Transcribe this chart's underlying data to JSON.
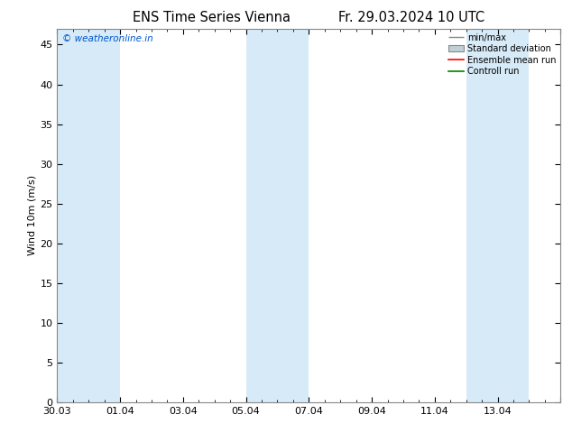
{
  "title_left": "ENS Time Series Vienna",
  "title_right": "Fr. 29.03.2024 10 UTC",
  "ylabel": "Wind 10m (m/s)",
  "watermark": "© weatheronline.in",
  "watermark_color": "#0055cc",
  "ylim": [
    0,
    47
  ],
  "yticks": [
    0,
    5,
    10,
    15,
    20,
    25,
    30,
    35,
    40,
    45
  ],
  "background_color": "#ffffff",
  "plot_bg_color": "#ffffff",
  "shaded_band_color": "#d6eaf8",
  "num_days": 16,
  "x_tick_labels_map": {
    "0": "30.03",
    "2": "01.04",
    "4": "03.04",
    "6": "05.04",
    "8": "07.04",
    "10": "09.04",
    "12": "11.04",
    "14": "13.04"
  },
  "shaded_ranges": [
    [
      0,
      2
    ],
    [
      6,
      8
    ],
    [
      13,
      15
    ]
  ],
  "legend_entries": [
    "min/max",
    "Standard deviation",
    "Ensemble mean run",
    "Controll run"
  ],
  "minmax_color": "#888888",
  "stddev_color": "#c0d0d8",
  "stddev_edge_color": "#888888",
  "ens_color": "#ff0000",
  "ctrl_color": "#008000",
  "spine_color": "#888888",
  "tick_color": "#555555",
  "font_size": 8,
  "title_font_size": 10.5
}
